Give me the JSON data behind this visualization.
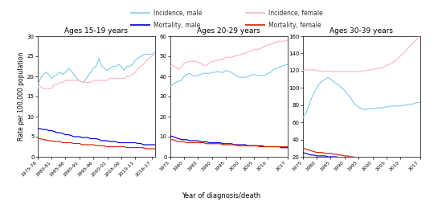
{
  "panels": [
    {
      "title": "Ages 15-19 years",
      "ylim": [
        0,
        30
      ],
      "yticks": [
        0,
        5,
        10,
        15,
        20,
        25,
        30
      ],
      "show_ylabel": true,
      "incidence_male": [
        17.0,
        19.5,
        20.5,
        21.0,
        20.5,
        19.5,
        20.0,
        20.5,
        21.0,
        20.5,
        21.0,
        22.0,
        21.5,
        20.5,
        19.5,
        19.0,
        18.5,
        19.0,
        20.0,
        21.0,
        22.0,
        22.5,
        24.5,
        22.5,
        22.0,
        21.5,
        22.0,
        22.5,
        22.5,
        23.0,
        22.5,
        21.5,
        22.5,
        22.5,
        23.0,
        24.0,
        24.5,
        25.0,
        25.5,
        25.5,
        25.5,
        25.5,
        26.0
      ],
      "incidence_female": [
        18.5,
        17.5,
        17.0,
        17.0,
        17.0,
        17.0,
        18.0,
        18.0,
        18.5,
        18.5,
        19.0,
        19.0,
        19.0,
        19.0,
        19.0,
        19.0,
        18.5,
        18.5,
        18.5,
        18.5,
        19.0,
        19.0,
        19.0,
        19.0,
        19.0,
        19.0,
        19.5,
        19.5,
        19.5,
        19.5,
        19.5,
        19.5,
        20.0,
        20.0,
        20.5,
        21.0,
        22.0,
        22.5,
        23.0,
        24.0,
        24.5,
        25.0,
        25.5
      ],
      "mortality_male": [
        7.0,
        7.0,
        6.8,
        6.8,
        6.5,
        6.5,
        6.3,
        6.0,
        6.0,
        5.8,
        5.5,
        5.5,
        5.3,
        5.0,
        5.0,
        5.0,
        4.8,
        4.8,
        4.8,
        4.5,
        4.5,
        4.5,
        4.3,
        4.0,
        4.0,
        4.0,
        3.8,
        3.8,
        3.8,
        3.5,
        3.5,
        3.5,
        3.5,
        3.5,
        3.5,
        3.5,
        3.3,
        3.3,
        3.0,
        3.0,
        3.0,
        3.0,
        3.0
      ],
      "mortality_female": [
        4.5,
        4.5,
        4.3,
        4.2,
        4.0,
        4.0,
        3.8,
        3.8,
        3.8,
        3.5,
        3.5,
        3.5,
        3.5,
        3.3,
        3.3,
        3.3,
        3.0,
        3.0,
        3.0,
        3.0,
        3.0,
        2.8,
        2.8,
        2.8,
        2.7,
        2.5,
        2.5,
        2.5,
        2.5,
        2.5,
        2.5,
        2.5,
        2.3,
        2.3,
        2.3,
        2.3,
        2.3,
        2.3,
        2.2,
        2.0,
        2.0,
        2.0,
        2.0
      ]
    },
    {
      "title": "Ages 20-29 years",
      "ylim": [
        0,
        60
      ],
      "yticks": [
        0,
        10,
        20,
        30,
        40,
        50,
        60
      ],
      "show_ylabel": false,
      "incidence_male": [
        35.0,
        36.0,
        37.0,
        37.5,
        38.0,
        40.0,
        41.0,
        41.5,
        40.5,
        40.0,
        40.5,
        41.0,
        41.5,
        41.5,
        41.5,
        42.0,
        42.0,
        42.5,
        42.0,
        42.0,
        43.0,
        42.5,
        42.0,
        41.0,
        40.0,
        39.5,
        39.5,
        39.5,
        40.0,
        40.5,
        41.0,
        40.5,
        40.5,
        40.5,
        40.5,
        41.5,
        42.0,
        43.5,
        44.0,
        44.5,
        45.0,
        45.5,
        46.0
      ],
      "incidence_female": [
        45.0,
        45.5,
        44.5,
        43.5,
        44.5,
        46.5,
        47.0,
        47.5,
        47.5,
        47.5,
        47.0,
        46.5,
        45.5,
        45.5,
        46.5,
        47.5,
        47.5,
        48.0,
        48.5,
        48.5,
        49.5,
        49.5,
        49.5,
        50.0,
        50.5,
        50.5,
        51.5,
        51.5,
        52.5,
        52.5,
        53.5,
        53.5,
        53.5,
        54.5,
        55.0,
        55.5,
        56.0,
        56.5,
        57.0,
        57.5,
        57.5,
        57.5,
        58.0
      ],
      "mortality_male": [
        10.5,
        10.0,
        9.5,
        9.0,
        8.5,
        8.5,
        8.5,
        8.0,
        8.0,
        8.0,
        8.0,
        7.5,
        7.5,
        7.5,
        7.0,
        7.0,
        7.0,
        7.0,
        7.0,
        6.5,
        6.5,
        6.5,
        6.5,
        6.0,
        6.0,
        6.0,
        6.0,
        6.0,
        5.5,
        5.5,
        5.5,
        5.5,
        5.5,
        5.5,
        5.0,
        5.0,
        5.0,
        5.0,
        5.0,
        5.0,
        4.5,
        4.5,
        4.5
      ],
      "mortality_female": [
        8.5,
        8.5,
        8.0,
        7.5,
        7.5,
        7.5,
        7.0,
        7.0,
        7.0,
        7.0,
        7.0,
        7.0,
        7.0,
        6.5,
        6.5,
        6.5,
        6.5,
        6.5,
        6.5,
        6.0,
        6.0,
        6.0,
        6.0,
        6.0,
        5.5,
        5.5,
        5.5,
        5.5,
        5.5,
        5.5,
        5.5,
        5.5,
        5.0,
        5.0,
        5.0,
        5.0,
        5.0,
        5.0,
        5.0,
        5.0,
        5.0,
        5.0,
        5.0
      ]
    },
    {
      "title": "Ages 30-39 years",
      "ylim": [
        20,
        160
      ],
      "yticks": [
        20,
        40,
        60,
        80,
        100,
        120,
        140,
        160
      ],
      "show_ylabel": false,
      "incidence_male": [
        65,
        70,
        78,
        87,
        94,
        100,
        105,
        108,
        110,
        112,
        110,
        107,
        105,
        103,
        100,
        97,
        93,
        89,
        84,
        80,
        78,
        76,
        75,
        75,
        76,
        76,
        76,
        77,
        77,
        77,
        78,
        78,
        79,
        79,
        79,
        79,
        80,
        80,
        81,
        81,
        82,
        83,
        83
      ],
      "incidence_female": [
        120,
        121,
        121,
        121,
        121,
        120,
        120,
        119,
        119,
        120,
        119,
        119,
        119,
        119,
        119,
        119,
        119,
        119,
        119,
        119,
        119,
        119,
        120,
        120,
        121,
        121,
        122,
        123,
        123,
        124,
        126,
        127,
        129,
        131,
        134,
        137,
        140,
        143,
        147,
        150,
        154,
        157,
        162
      ],
      "mortality_male": [
        25,
        24,
        23,
        22,
        22,
        21,
        21,
        21,
        21,
        20,
        20,
        20,
        20,
        19,
        19,
        18,
        18,
        17,
        17,
        16,
        16,
        15,
        15,
        14,
        14,
        13,
        13,
        12,
        12,
        11,
        11,
        11,
        10,
        10,
        10,
        10,
        10,
        10,
        10,
        10,
        10,
        10,
        10
      ],
      "mortality_female": [
        30,
        29,
        28,
        27,
        26,
        25,
        25,
        25,
        24,
        24,
        24,
        23,
        23,
        22,
        22,
        21,
        21,
        20,
        20,
        19,
        19,
        18,
        18,
        17,
        17,
        16,
        16,
        16,
        15,
        15,
        15,
        14,
        14,
        14,
        14,
        13,
        13,
        13,
        13,
        13,
        12,
        12,
        12
      ]
    }
  ],
  "colors": {
    "incidence_male": "#87CEEB",
    "incidence_female": "#FFB6C1",
    "mortality_male": "#0000CD",
    "mortality_female": "#CC2200"
  },
  "years": [
    1975,
    1976,
    1977,
    1978,
    1979,
    1980,
    1981,
    1982,
    1983,
    1984,
    1985,
    1986,
    1987,
    1988,
    1989,
    1990,
    1991,
    1992,
    1993,
    1994,
    1995,
    1996,
    1997,
    1998,
    1999,
    2000,
    2001,
    2002,
    2003,
    2004,
    2005,
    2006,
    2007,
    2008,
    2009,
    2010,
    2011,
    2012,
    2013,
    2014,
    2015,
    2016,
    2017
  ],
  "xlabel": "Year of diagnosis/death",
  "ylabel": "Rate per 100,000 population",
  "xtick_labels_panel0": [
    "1975-76",
    "1980-81",
    "1985-86",
    "1990-91",
    "1995-96",
    "2000-01",
    "2005-06",
    "2010-11",
    "2016-17"
  ],
  "xtick_labels_panel12": [
    "1975",
    "1980",
    "1985",
    "1990",
    "1995",
    "2000",
    "2005",
    "2010",
    "2017"
  ],
  "xtick_pos_panel0": [
    1975,
    1980,
    1985,
    1990,
    1995,
    2000,
    2005,
    2010,
    2016
  ],
  "xtick_pos_panel12": [
    1975,
    1980,
    1985,
    1990,
    1995,
    2000,
    2005,
    2010,
    2017
  ],
  "legend": {
    "row1": [
      {
        "label": "Incidence, male",
        "color": "#87CEEB"
      },
      {
        "label": "Incidence, female",
        "color": "#FFB6C1"
      }
    ],
    "row2": [
      {
        "label": "Mortality, male",
        "color": "#0000CD"
      },
      {
        "label": "Mortality, female",
        "color": "#CC2200"
      }
    ]
  }
}
